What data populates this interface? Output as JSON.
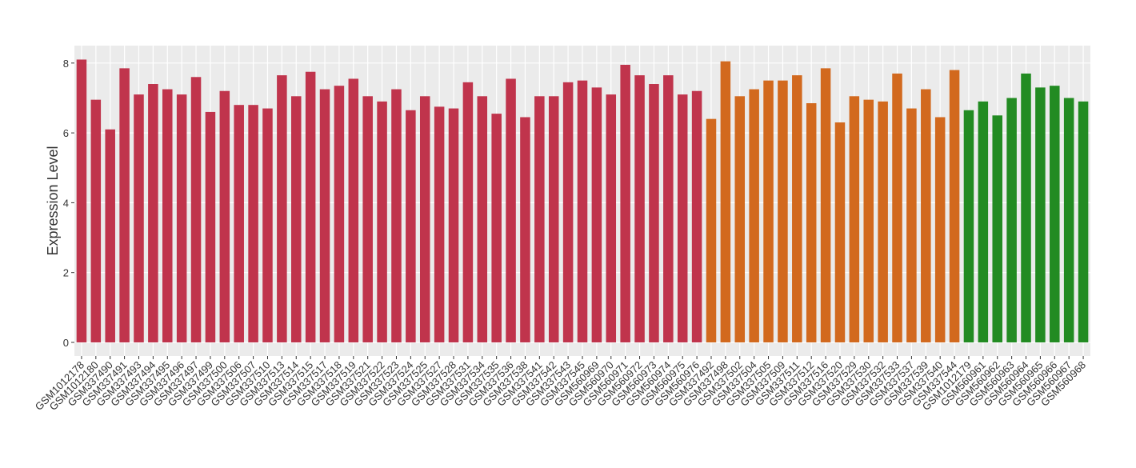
{
  "chart_data": {
    "type": "bar",
    "y_label": "Expression Level",
    "categories": [
      "GSM1012178",
      "GSM1012180",
      "GSM337490",
      "GSM337491",
      "GSM337493",
      "GSM337494",
      "GSM337495",
      "GSM337496",
      "GSM337497",
      "GSM337499",
      "GSM337500",
      "GSM337506",
      "GSM337507",
      "GSM337510",
      "GSM337513",
      "GSM337514",
      "GSM337515",
      "GSM337517",
      "GSM337518",
      "GSM337519",
      "GSM337521",
      "GSM337522",
      "GSM337523",
      "GSM337524",
      "GSM337525",
      "GSM337527",
      "GSM337528",
      "GSM337531",
      "GSM337534",
      "GSM337535",
      "GSM337536",
      "GSM337538",
      "GSM337541",
      "GSM337542",
      "GSM337543",
      "GSM337545",
      "GSM560969",
      "GSM560970",
      "GSM560971",
      "GSM560972",
      "GSM560973",
      "GSM560974",
      "GSM560975",
      "GSM560976",
      "GSM337492",
      "GSM337498",
      "GSM337502",
      "GSM337504",
      "GSM337505",
      "GSM337509",
      "GSM337511",
      "GSM337512",
      "GSM337516",
      "GSM337520",
      "GSM337529",
      "GSM337530",
      "GSM337532",
      "GSM337533",
      "GSM337537",
      "GSM337539",
      "GSM337540",
      "GSM337544",
      "GSM1012179",
      "GSM560961",
      "GSM560962",
      "GSM560963",
      "GSM560964",
      "GSM560965",
      "GSM560966",
      "GSM560967",
      "GSM560968"
    ],
    "values": [
      8.1,
      6.95,
      6.1,
      7.85,
      7.1,
      7.4,
      7.25,
      7.1,
      7.6,
      6.6,
      7.2,
      6.8,
      6.8,
      6.7,
      7.65,
      7.05,
      7.75,
      7.25,
      7.35,
      7.55,
      7.05,
      6.9,
      7.25,
      6.65,
      7.05,
      6.75,
      6.7,
      7.45,
      7.05,
      6.55,
      7.55,
      6.45,
      7.05,
      7.05,
      7.45,
      7.5,
      7.3,
      7.1,
      7.95,
      7.65,
      7.4,
      7.65,
      7.1,
      7.2,
      6.4,
      8.05,
      7.05,
      7.25,
      7.5,
      7.5,
      7.65,
      6.85,
      7.85,
      6.3,
      7.05,
      6.95,
      6.9,
      7.7,
      6.7,
      7.25,
      6.45,
      7.8,
      6.65,
      6.9,
      6.5,
      7.0,
      7.7,
      7.3,
      7.35,
      7.0,
      6.9
    ],
    "colors": [
      "#c0344c",
      "#c0344c",
      "#c0344c",
      "#c0344c",
      "#c0344c",
      "#c0344c",
      "#c0344c",
      "#c0344c",
      "#c0344c",
      "#c0344c",
      "#c0344c",
      "#c0344c",
      "#c0344c",
      "#c0344c",
      "#c0344c",
      "#c0344c",
      "#c0344c",
      "#c0344c",
      "#c0344c",
      "#c0344c",
      "#c0344c",
      "#c0344c",
      "#c0344c",
      "#c0344c",
      "#c0344c",
      "#c0344c",
      "#c0344c",
      "#c0344c",
      "#c0344c",
      "#c0344c",
      "#c0344c",
      "#c0344c",
      "#c0344c",
      "#c0344c",
      "#c0344c",
      "#c0344c",
      "#c0344c",
      "#c0344c",
      "#c0344c",
      "#c0344c",
      "#c0344c",
      "#c0344c",
      "#c0344c",
      "#c0344c",
      "#d2691e",
      "#d2691e",
      "#d2691e",
      "#d2691e",
      "#d2691e",
      "#d2691e",
      "#d2691e",
      "#d2691e",
      "#d2691e",
      "#d2691e",
      "#d2691e",
      "#d2691e",
      "#d2691e",
      "#d2691e",
      "#d2691e",
      "#d2691e",
      "#d2691e",
      "#d2691e",
      "#228b22",
      "#228b22",
      "#228b22",
      "#228b22",
      "#228b22",
      "#228b22",
      "#228b22",
      "#228b22",
      "#228b22"
    ],
    "ylim": [
      -0.39,
      8.5
    ],
    "yticks": [
      0,
      2,
      4,
      6,
      8
    ],
    "grid": true
  }
}
